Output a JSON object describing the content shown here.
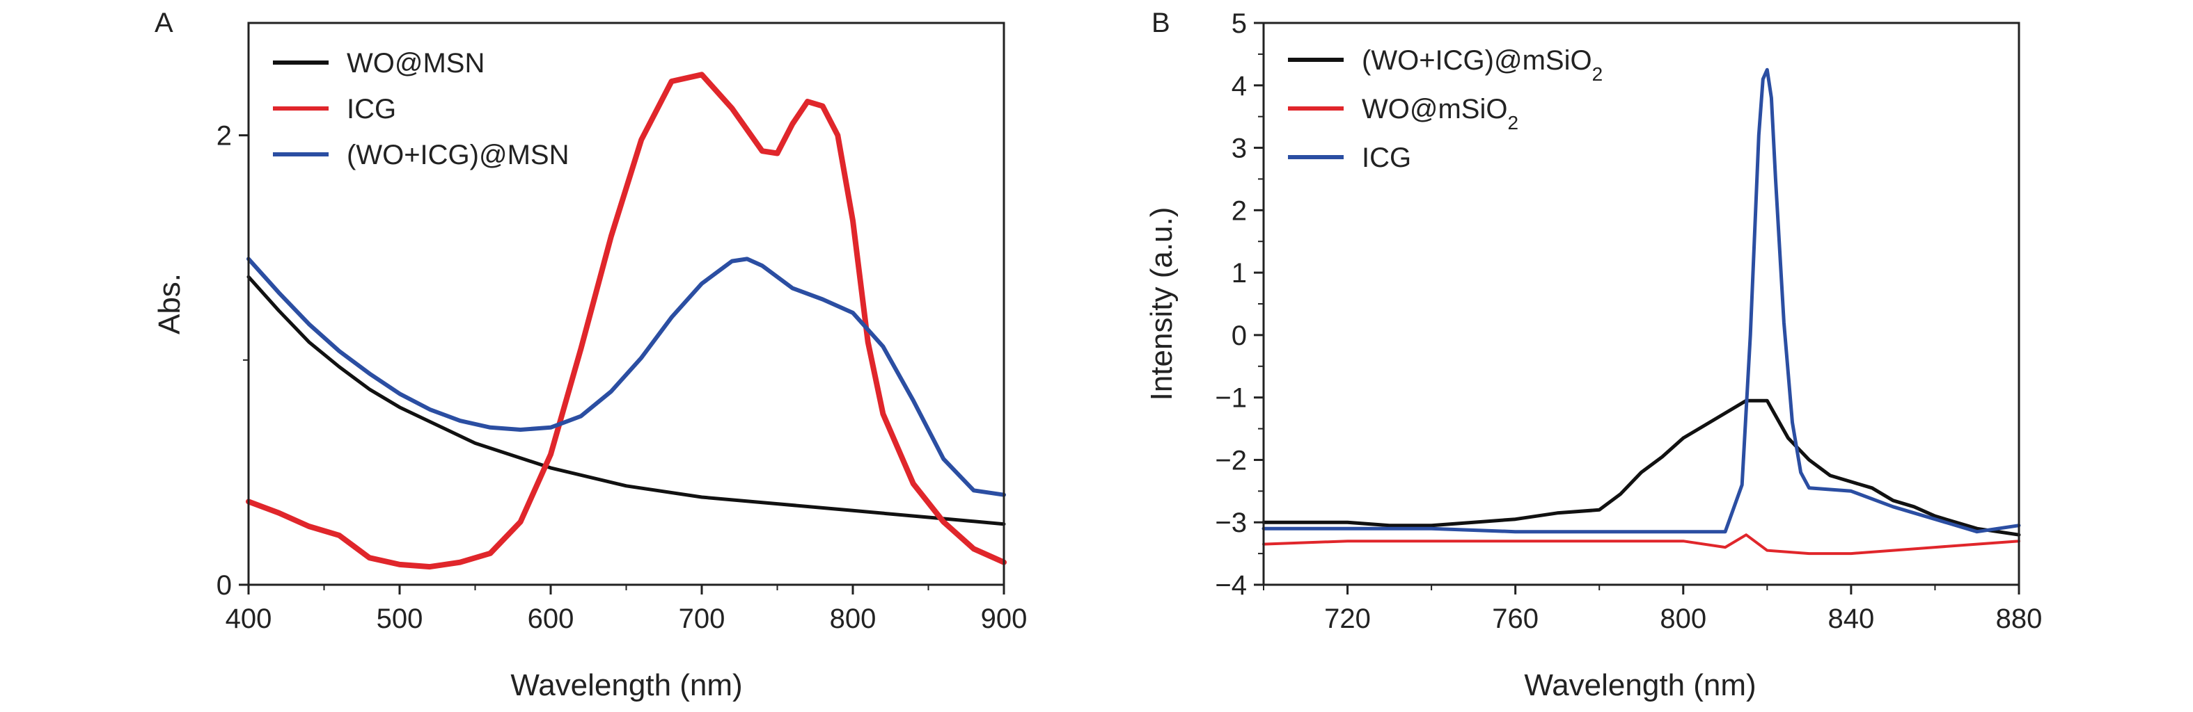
{
  "chart_data": [
    {
      "panel": "A",
      "type": "line",
      "xlabel": "Wavelength (nm)",
      "ylabel": "Abs.",
      "xlim": [
        400,
        900
      ],
      "ylim": [
        0,
        2.5
      ],
      "xticks": [
        400,
        500,
        600,
        700,
        800,
        900
      ],
      "yticks": [
        0,
        2
      ],
      "yticks_minor": [
        1
      ],
      "legend_position": "top-left",
      "series": [
        {
          "name": "WO@MSN",
          "color": "#111111",
          "x": [
            400,
            420,
            440,
            460,
            480,
            500,
            550,
            600,
            650,
            700,
            750,
            800,
            850,
            900
          ],
          "y": [
            1.37,
            1.22,
            1.08,
            0.97,
            0.87,
            0.79,
            0.63,
            0.52,
            0.44,
            0.39,
            0.36,
            0.33,
            0.3,
            0.27
          ]
        },
        {
          "name": "ICG",
          "color": "#e0262b",
          "x": [
            400,
            420,
            440,
            460,
            480,
            500,
            520,
            540,
            560,
            580,
            600,
            620,
            640,
            660,
            680,
            700,
            720,
            740,
            750,
            760,
            770,
            780,
            790,
            800,
            810,
            820,
            840,
            860,
            880,
            900
          ],
          "y": [
            0.37,
            0.32,
            0.26,
            0.22,
            0.12,
            0.09,
            0.08,
            0.1,
            0.14,
            0.28,
            0.58,
            1.05,
            1.55,
            1.98,
            2.24,
            2.27,
            2.12,
            1.93,
            1.92,
            2.05,
            2.15,
            2.13,
            2.0,
            1.62,
            1.08,
            0.76,
            0.45,
            0.28,
            0.16,
            0.1
          ]
        },
        {
          "name": "(WO+ICG)@MSN",
          "color": "#2b4ea2",
          "x": [
            400,
            420,
            440,
            460,
            480,
            500,
            520,
            540,
            560,
            580,
            600,
            620,
            640,
            660,
            680,
            700,
            720,
            730,
            740,
            760,
            780,
            800,
            820,
            840,
            860,
            880,
            900
          ],
          "y": [
            1.45,
            1.3,
            1.16,
            1.04,
            0.94,
            0.85,
            0.78,
            0.73,
            0.7,
            0.69,
            0.7,
            0.75,
            0.86,
            1.01,
            1.19,
            1.34,
            1.44,
            1.45,
            1.42,
            1.32,
            1.27,
            1.21,
            1.06,
            0.82,
            0.56,
            0.42,
            0.4
          ]
        }
      ]
    },
    {
      "panel": "B",
      "type": "line",
      "xlabel": "Wavelength (nm)",
      "ylabel": "Intensity (a.u.)",
      "xlim": [
        700,
        880
      ],
      "ylim": [
        -4,
        5
      ],
      "xticks": [
        720,
        760,
        800,
        840,
        880
      ],
      "yticks": [
        -4,
        -3,
        -2,
        -1,
        0,
        1,
        2,
        3,
        4,
        5
      ],
      "legend_position": "top-left",
      "series": [
        {
          "name": "(WO+ICG)@mSiO2",
          "color": "#111111",
          "x": [
            700,
            710,
            720,
            730,
            740,
            750,
            760,
            770,
            780,
            785,
            790,
            795,
            800,
            805,
            810,
            815,
            820,
            825,
            830,
            835,
            840,
            845,
            850,
            855,
            860,
            870,
            880
          ],
          "y": [
            -3.0,
            -3.0,
            -3.0,
            -3.05,
            -3.05,
            -3.0,
            -2.95,
            -2.85,
            -2.8,
            -2.55,
            -2.2,
            -1.95,
            -1.65,
            -1.45,
            -1.25,
            -1.05,
            -1.05,
            -1.65,
            -2.0,
            -2.25,
            -2.35,
            -2.45,
            -2.65,
            -2.75,
            -2.9,
            -3.1,
            -3.2
          ]
        },
        {
          "name": "WO@mSiO2",
          "color": "#e0262b",
          "x": [
            700,
            720,
            740,
            760,
            780,
            800,
            810,
            815,
            820,
            830,
            840,
            850,
            860,
            870,
            880
          ],
          "y": [
            -3.35,
            -3.3,
            -3.3,
            -3.3,
            -3.3,
            -3.3,
            -3.4,
            -3.2,
            -3.45,
            -3.5,
            -3.5,
            -3.45,
            -3.4,
            -3.35,
            -3.3
          ]
        },
        {
          "name": "ICG",
          "color": "#2b4ea2",
          "x": [
            700,
            720,
            740,
            760,
            780,
            800,
            810,
            814,
            816,
            818,
            819,
            820,
            821,
            822,
            824,
            826,
            828,
            830,
            840,
            850,
            860,
            870,
            880
          ],
          "y": [
            -3.1,
            -3.1,
            -3.1,
            -3.15,
            -3.15,
            -3.15,
            -3.15,
            -2.4,
            0.0,
            3.2,
            4.1,
            4.25,
            3.8,
            2.5,
            0.2,
            -1.4,
            -2.2,
            -2.45,
            -2.5,
            -2.75,
            -2.95,
            -3.15,
            -3.05
          ]
        }
      ]
    }
  ]
}
